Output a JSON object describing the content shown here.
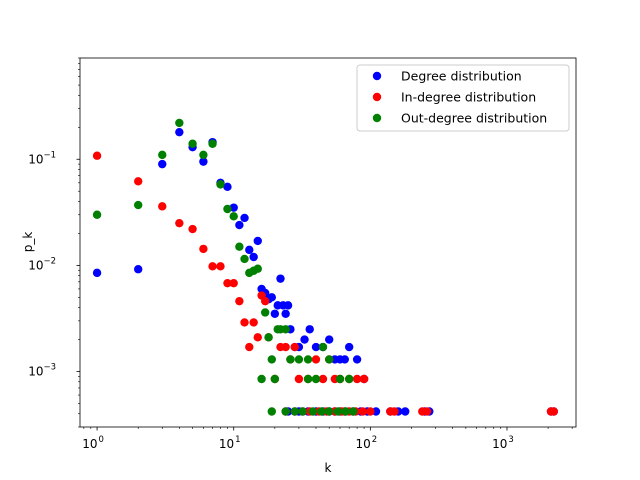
{
  "chart_data": {
    "type": "scatter",
    "title": "",
    "xlabel": "k",
    "ylabel": "p_k",
    "xscale": "log",
    "yscale": "log",
    "xlim": [
      0.75,
      3200
    ],
    "ylim": [
      0.0003,
      0.9
    ],
    "grid": false,
    "legend_position": "top-right",
    "x_ticks": [
      {
        "value": 1,
        "base": "10",
        "exp": "0"
      },
      {
        "value": 10,
        "base": "10",
        "exp": "1"
      },
      {
        "value": 100,
        "base": "10",
        "exp": "2"
      },
      {
        "value": 1000,
        "base": "10",
        "exp": "3"
      }
    ],
    "y_ticks": [
      {
        "value": 0.001,
        "base": "10",
        "exp": "−3"
      },
      {
        "value": 0.01,
        "base": "10",
        "exp": "−2"
      },
      {
        "value": 0.1,
        "base": "10",
        "exp": "−1"
      }
    ],
    "series": [
      {
        "name": "Degree distribution",
        "color": "#0000ff",
        "points": [
          [
            1,
            0.0085
          ],
          [
            2,
            0.0092
          ],
          [
            3,
            0.09
          ],
          [
            4,
            0.18
          ],
          [
            5,
            0.13
          ],
          [
            6,
            0.095
          ],
          [
            7,
            0.145
          ],
          [
            8,
            0.06
          ],
          [
            9,
            0.055
          ],
          [
            10,
            0.035
          ],
          [
            11,
            0.024
          ],
          [
            12,
            0.028
          ],
          [
            13,
            0.014
          ],
          [
            14,
            0.012
          ],
          [
            15,
            0.017
          ],
          [
            16,
            0.006
          ],
          [
            17,
            0.0055
          ],
          [
            18,
            0.0048
          ],
          [
            19,
            0.005
          ],
          [
            20,
            0.0035
          ],
          [
            21,
            0.0042
          ],
          [
            22,
            0.0075
          ],
          [
            23,
            0.0042
          ],
          [
            24,
            0.0035
          ],
          [
            25,
            0.0042
          ],
          [
            26,
            0.0025
          ],
          [
            28,
            0.0017
          ],
          [
            30,
            0.0017
          ],
          [
            33,
            0.002
          ],
          [
            36,
            0.0025
          ],
          [
            40,
            0.0017
          ],
          [
            45,
            0.0017
          ],
          [
            50,
            0.002
          ],
          [
            55,
            0.0013
          ],
          [
            60,
            0.0013
          ],
          [
            65,
            0.0013
          ],
          [
            70,
            0.0017
          ],
          [
            80,
            0.0013
          ],
          [
            90,
            0.00085
          ],
          [
            25,
            0.00042
          ],
          [
            30,
            0.00042
          ],
          [
            35,
            0.00042
          ],
          [
            40,
            0.00042
          ],
          [
            45,
            0.00042
          ],
          [
            50,
            0.00042
          ],
          [
            55,
            0.00042
          ],
          [
            60,
            0.00042
          ],
          [
            65,
            0.00042
          ],
          [
            75,
            0.00042
          ],
          [
            85,
            0.00042
          ],
          [
            95,
            0.00042
          ],
          [
            110,
            0.00042
          ],
          [
            140,
            0.00042
          ],
          [
            160,
            0.00042
          ],
          [
            180,
            0.00042
          ],
          [
            250,
            0.00042
          ],
          [
            270,
            0.00042
          ],
          [
            2100,
            0.00042
          ],
          [
            2200,
            0.00042
          ]
        ]
      },
      {
        "name": "In-degree distribution",
        "color": "#ff0000",
        "points": [
          [
            1,
            0.108
          ],
          [
            2,
            0.062
          ],
          [
            3,
            0.036
          ],
          [
            4,
            0.025
          ],
          [
            5,
            0.022
          ],
          [
            6,
            0.0143
          ],
          [
            7,
            0.0098
          ],
          [
            8,
            0.0098
          ],
          [
            9,
            0.0068
          ],
          [
            10,
            0.0068
          ],
          [
            11,
            0.0046
          ],
          [
            12,
            0.0029
          ],
          [
            13,
            0.0017
          ],
          [
            14,
            0.0029
          ],
          [
            15,
            0.0021
          ],
          [
            16,
            0.0052
          ],
          [
            17,
            0.0046
          ],
          [
            18,
            0.0021
          ],
          [
            20,
            0.00085
          ],
          [
            22,
            0.0017
          ],
          [
            24,
            0.0017
          ],
          [
            26,
            0.0013
          ],
          [
            28,
            0.0017
          ],
          [
            30,
            0.00085
          ],
          [
            35,
            0.00085
          ],
          [
            40,
            0.0013
          ],
          [
            45,
            0.00085
          ],
          [
            50,
            0.0013
          ],
          [
            55,
            0.00085
          ],
          [
            60,
            0.00085
          ],
          [
            70,
            0.00085
          ],
          [
            80,
            0.00085
          ],
          [
            90,
            0.00085
          ],
          [
            24,
            0.00042
          ],
          [
            28,
            0.00042
          ],
          [
            32,
            0.00042
          ],
          [
            36,
            0.00042
          ],
          [
            42,
            0.00042
          ],
          [
            48,
            0.00042
          ],
          [
            55,
            0.00042
          ],
          [
            62,
            0.00042
          ],
          [
            70,
            0.00042
          ],
          [
            78,
            0.00042
          ],
          [
            88,
            0.00042
          ],
          [
            100,
            0.00042
          ],
          [
            140,
            0.00042
          ],
          [
            150,
            0.00042
          ],
          [
            240,
            0.00042
          ],
          [
            260,
            0.00042
          ],
          [
            2100,
            0.00042
          ],
          [
            2200,
            0.00042
          ]
        ]
      },
      {
        "name": "Out-degree distribution",
        "color": "#008000",
        "points": [
          [
            1,
            0.03
          ],
          [
            2,
            0.037
          ],
          [
            3,
            0.11
          ],
          [
            4,
            0.22
          ],
          [
            5,
            0.14
          ],
          [
            6,
            0.11
          ],
          [
            7,
            0.14
          ],
          [
            8,
            0.058
          ],
          [
            9,
            0.034
          ],
          [
            10,
            0.029
          ],
          [
            11,
            0.015
          ],
          [
            12,
            0.0115
          ],
          [
            13,
            0.0085
          ],
          [
            14,
            0.0089
          ],
          [
            15,
            0.0093
          ],
          [
            17,
            0.0036
          ],
          [
            18,
            0.0021
          ],
          [
            19,
            0.0013
          ],
          [
            21,
            0.0025
          ],
          [
            22,
            0.0025
          ],
          [
            24,
            0.0025
          ],
          [
            26,
            0.0013
          ],
          [
            30,
            0.0013
          ],
          [
            35,
            0.0013
          ],
          [
            45,
            0.0017
          ],
          [
            50,
            0.0013
          ],
          [
            16,
            0.00085
          ],
          [
            20,
            0.00085
          ],
          [
            35,
            0.00085
          ],
          [
            40,
            0.00085
          ],
          [
            60,
            0.00085
          ],
          [
            70,
            0.00085
          ],
          [
            19,
            0.00042
          ],
          [
            24,
            0.00042
          ],
          [
            28,
            0.00042
          ],
          [
            32,
            0.00042
          ],
          [
            38,
            0.00042
          ],
          [
            44,
            0.00042
          ],
          [
            50,
            0.00042
          ],
          [
            58,
            0.00042
          ],
          [
            66,
            0.00042
          ],
          [
            75,
            0.00042
          ]
        ]
      }
    ]
  }
}
